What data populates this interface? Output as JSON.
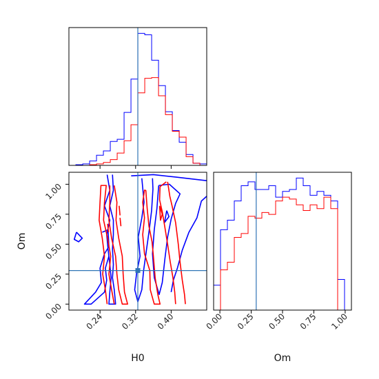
{
  "chart_data": [
    {
      "panel": "H0 histogram",
      "type": "histogram",
      "xlim": [
        0.17,
        0.48
      ],
      "bin_edges": [
        0.17,
        0.1856,
        0.2011,
        0.2166,
        0.2321,
        0.2476,
        0.2631,
        0.2786,
        0.2941,
        0.3096,
        0.3251,
        0.3406,
        0.3561,
        0.3716,
        0.3871,
        0.4026,
        0.4181,
        0.4336,
        0.4491,
        0.4646,
        0.48
      ],
      "series": [
        {
          "color": "#0000ff",
          "counts": [
            0,
            1,
            2,
            6,
            14,
            20,
            33,
            36,
            73,
            119,
            182,
            180,
            145,
            110,
            74,
            48,
            32,
            15,
            3,
            2
          ]
        },
        {
          "color": "#ff0000",
          "counts": [
            0,
            0,
            0,
            1,
            2,
            4,
            8,
            17,
            34,
            56,
            100,
            120,
            121,
            96,
            70,
            47,
            39,
            12,
            3,
            0
          ]
        }
      ],
      "truth": 0.325,
      "ticks": [
        "0.24",
        "0.32",
        "0.40"
      ]
    },
    {
      "panel": "Om histogram",
      "type": "histogram",
      "xlim": [
        -0.05,
        1.05
      ],
      "bin_edges": [
        -0.05,
        0.005,
        0.06,
        0.115,
        0.17,
        0.225,
        0.28,
        0.335,
        0.39,
        0.445,
        0.5,
        0.555,
        0.61,
        0.665,
        0.72,
        0.775,
        0.83,
        0.885,
        0.94,
        0.995,
        1.05
      ],
      "series": [
        {
          "color": "#0000ff",
          "counts": [
            13,
            42,
            47,
            57,
            65,
            67,
            63,
            63,
            65,
            59,
            62,
            63,
            69,
            65,
            60,
            62,
            60,
            57,
            16,
            0
          ]
        },
        {
          "color": "#ff0000",
          "counts": [
            0,
            21,
            25,
            38,
            40,
            49,
            48,
            51,
            50,
            57,
            59,
            58,
            55,
            52,
            55,
            53,
            59,
            53,
            0,
            0
          ]
        }
      ],
      "truth": 0.29,
      "ticks": [
        "0.00",
        "0.25",
        "0.50",
        "0.75",
        "1.00"
      ],
      "xlabel": "Om"
    },
    {
      "panel": "H0 vs Om contours",
      "type": "contour",
      "xlim": [
        0.17,
        0.48
      ],
      "ylim": [
        -0.05,
        1.1
      ],
      "truth": [
        0.325,
        0.28
      ],
      "xticks": [
        "0.24",
        "0.32",
        "0.40"
      ],
      "yticks": [
        "0.00",
        "0.25",
        "0.50",
        "0.75",
        "1.00"
      ],
      "xlabel": "H0",
      "ylabel": "Om",
      "contours": [
        {
          "color": "#0000ff",
          "points": [
            [
              0.31,
              1.07
            ],
            [
              0.36,
              1.08
            ],
            [
              0.41,
              1.06
            ],
            [
              0.48,
              1.03
            ]
          ]
        },
        {
          "color": "#0000ff",
          "points": [
            [
              0.256,
              1.08
            ],
            [
              0.262,
              0.95
            ],
            [
              0.25,
              0.82
            ],
            [
              0.262,
              0.7
            ],
            [
              0.255,
              0.58
            ],
            [
              0.258,
              0.46
            ],
            [
              0.262,
              0.33
            ],
            [
              0.265,
              0.22
            ],
            [
              0.262,
              0.1
            ],
            [
              0.26,
              0.0
            ],
            [
              0.275,
              0.0
            ],
            [
              0.272,
              0.12
            ],
            [
              0.268,
              0.22
            ],
            [
              0.27,
              0.33
            ],
            [
              0.268,
              0.46
            ],
            [
              0.27,
              0.58
            ],
            [
              0.27,
              0.7
            ],
            [
              0.262,
              0.82
            ],
            [
              0.27,
              0.95
            ],
            [
              0.268,
              1.08
            ]
          ]
        },
        {
          "color": "#0000ff",
          "points": [
            [
              0.245,
              0.6
            ],
            [
              0.258,
              0.62
            ],
            [
              0.26,
              0.48
            ],
            [
              0.25,
              0.42
            ],
            [
              0.24,
              0.3
            ],
            [
              0.243,
              0.18
            ],
            [
              0.23,
              0.1
            ],
            [
              0.205,
              0.0
            ],
            [
              0.22,
              0.0
            ],
            [
              0.25,
              0.1
            ],
            [
              0.255,
              0.2
            ],
            [
              0.252,
              0.3
            ],
            [
              0.26,
              0.4
            ]
          ]
        },
        {
          "color": "#0000ff",
          "points": [
            [
              0.187,
              0.6
            ],
            [
              0.2,
              0.55
            ],
            [
              0.192,
              0.52
            ],
            [
              0.182,
              0.54
            ],
            [
              0.187,
              0.6
            ]
          ]
        },
        {
          "color": "#0000ff",
          "points": [
            [
              0.334,
              1.05
            ],
            [
              0.339,
              0.85
            ],
            [
              0.334,
              0.72
            ],
            [
              0.326,
              0.56
            ],
            [
              0.33,
              0.4
            ],
            [
              0.322,
              0.25
            ],
            [
              0.318,
              0.12
            ],
            [
              0.325,
              0.02
            ],
            [
              0.334,
              0.12
            ],
            [
              0.338,
              0.28
            ],
            [
              0.344,
              0.44
            ],
            [
              0.35,
              0.6
            ],
            [
              0.356,
              0.78
            ],
            [
              0.359,
              0.96
            ],
            [
              0.358,
              1.05
            ]
          ]
        },
        {
          "color": "#0000ff",
          "points": [
            [
              0.372,
              0.99
            ],
            [
              0.368,
              0.8
            ],
            [
              0.362,
              0.62
            ],
            [
              0.358,
              0.42
            ],
            [
              0.362,
              0.22
            ],
            [
              0.373,
              0.08
            ],
            [
              0.38,
              0.18
            ],
            [
              0.386,
              0.38
            ],
            [
              0.392,
              0.56
            ],
            [
              0.4,
              0.71
            ],
            [
              0.41,
              0.84
            ],
            [
              0.42,
              0.92
            ],
            [
              0.396,
              1.0
            ],
            [
              0.372,
              0.99
            ]
          ]
        },
        {
          "color": "#0000ff",
          "points": [
            [
              0.48,
              0.9
            ],
            [
              0.468,
              0.86
            ],
            [
              0.458,
              0.72
            ],
            [
              0.44,
              0.6
            ],
            [
              0.425,
              0.45
            ],
            [
              0.414,
              0.3
            ],
            [
              0.405,
              0.2
            ],
            [
              0.4,
              0.1
            ]
          ]
        },
        {
          "color": "#0000ff",
          "points": [
            [
              0.39,
              0.78
            ],
            [
              0.395,
              0.73
            ],
            [
              0.385,
              0.68
            ],
            [
              0.39,
              0.78
            ]
          ]
        },
        {
          "color": "#ff0000",
          "points": [
            [
              0.272,
              0.99
            ],
            [
              0.278,
              0.85
            ],
            [
              0.276,
              0.7
            ],
            [
              0.282,
              0.55
            ],
            [
              0.29,
              0.4
            ],
            [
              0.292,
              0.25
            ],
            [
              0.295,
              0.1
            ],
            [
              0.302,
              0.0
            ],
            [
              0.29,
              0.0
            ],
            [
              0.282,
              0.12
            ],
            [
              0.278,
              0.25
            ],
            [
              0.275,
              0.4
            ],
            [
              0.266,
              0.55
            ],
            [
              0.26,
              0.7
            ],
            [
              0.262,
              0.85
            ],
            [
              0.262,
              0.99
            ]
          ]
        },
        {
          "color": "#ff0000",
          "points": [
            [
              0.272,
              0.0
            ],
            [
              0.266,
              0.12
            ],
            [
              0.26,
              0.25
            ],
            [
              0.264,
              0.4
            ],
            [
              0.257,
              0.55
            ],
            [
              0.248,
              0.7
            ],
            [
              0.25,
              0.85
            ],
            [
              0.254,
              0.99
            ],
            [
              0.242,
              0.99
            ],
            [
              0.24,
              0.85
            ],
            [
              0.238,
              0.7
            ],
            [
              0.245,
              0.55
            ],
            [
              0.25,
              0.4
            ],
            [
              0.246,
              0.25
            ],
            [
              0.252,
              0.12
            ],
            [
              0.256,
              0.0
            ]
          ]
        },
        {
          "color": "#ff0000",
          "points": [
            [
              0.257,
              0.67
            ],
            [
              0.259,
              0.6
            ]
          ]
        },
        {
          "color": "#ff0000",
          "points": [
            [
              0.283,
              0.82
            ],
            [
              0.285,
              0.74
            ]
          ]
        },
        {
          "color": "#ff0000",
          "points": [
            [
              0.285,
              0.72
            ],
            [
              0.287,
              0.65
            ]
          ]
        },
        {
          "color": "#ff0000",
          "points": [
            [
              0.343,
              0.95
            ],
            [
              0.346,
              0.8
            ],
            [
              0.35,
              0.65
            ],
            [
              0.357,
              0.52
            ],
            [
              0.36,
              0.4
            ],
            [
              0.364,
              0.22
            ],
            [
              0.37,
              0.08
            ],
            [
              0.375,
              0.0
            ],
            [
              0.362,
              0.0
            ],
            [
              0.353,
              0.12
            ],
            [
              0.352,
              0.28
            ],
            [
              0.34,
              0.42
            ],
            [
              0.336,
              0.58
            ],
            [
              0.34,
              0.72
            ],
            [
              0.336,
              0.85
            ],
            [
              0.34,
              0.95
            ],
            [
              0.343,
              0.95
            ]
          ]
        },
        {
          "color": "#ff0000",
          "points": [
            [
              0.392,
              1.02
            ],
            [
              0.397,
              0.9
            ],
            [
              0.402,
              0.82
            ],
            [
              0.41,
              0.68
            ],
            [
              0.416,
              0.5
            ],
            [
              0.42,
              0.35
            ],
            [
              0.425,
              0.2
            ],
            [
              0.43,
              0.08
            ],
            [
              0.432,
              0.0
            ]
          ]
        },
        {
          "color": "#ff0000",
          "points": [
            [
              0.389,
              1.02
            ],
            [
              0.375,
              0.98
            ],
            [
              0.374,
              0.87
            ],
            [
              0.38,
              0.77
            ],
            [
              0.385,
              0.66
            ],
            [
              0.392,
              0.5
            ],
            [
              0.398,
              0.35
            ],
            [
              0.404,
              0.22
            ],
            [
              0.408,
              0.1
            ],
            [
              0.41,
              0.0
            ]
          ]
        },
        {
          "color": "#ff0000",
          "points": [
            [
              0.374,
              0.82
            ],
            [
              0.38,
              0.75
            ],
            [
              0.376,
              0.7
            ],
            [
              0.374,
              0.82
            ]
          ]
        }
      ]
    }
  ]
}
